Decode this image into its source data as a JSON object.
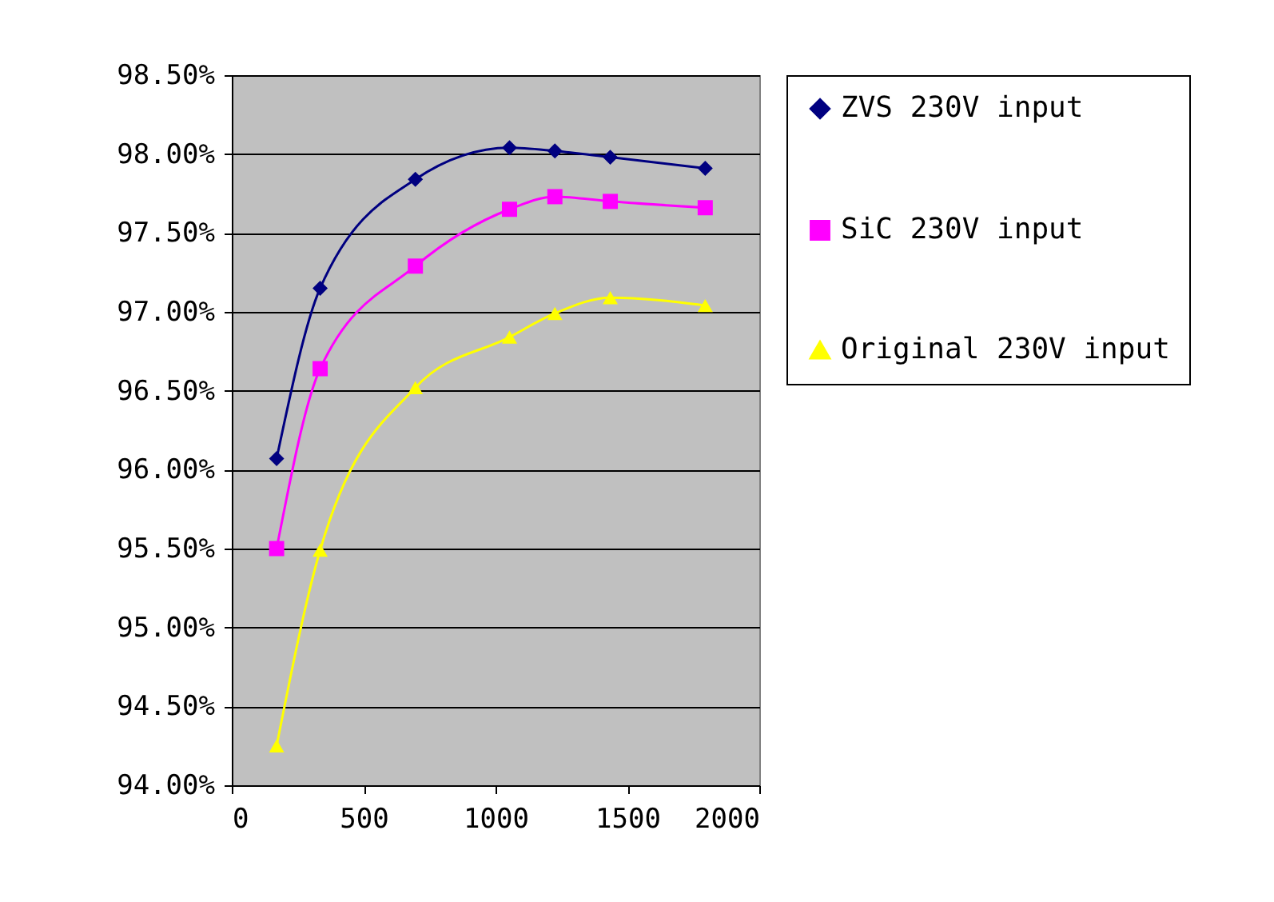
{
  "chart_data": {
    "type": "line",
    "x": [
      170,
      335,
      696,
      1053,
      1225,
      1435,
      1795
    ],
    "series": [
      {
        "name": "ZVS 230V input",
        "color": "#000080",
        "marker": "diamond",
        "values": [
          96.07,
          97.15,
          97.84,
          98.04,
          98.02,
          97.98,
          97.91
        ]
      },
      {
        "name": "SiC 230V input",
        "color": "#ff00ff",
        "marker": "square",
        "values": [
          95.5,
          96.64,
          97.29,
          97.65,
          97.73,
          97.7,
          97.66
        ]
      },
      {
        "name": "Original 230V input",
        "color": "#ffff00",
        "marker": "triangle",
        "values": [
          94.25,
          95.49,
          96.52,
          96.84,
          96.99,
          97.09,
          97.04
        ]
      }
    ],
    "xlim": [
      0,
      2000
    ],
    "xticks": [
      0,
      500,
      1000,
      1500,
      2000
    ],
    "ylim": [
      94,
      98.5
    ],
    "yticks": [
      {
        "value": 94,
        "label": "94.00%"
      },
      {
        "value": 94.5,
        "label": "94.50%"
      },
      {
        "value": 95,
        "label": "95.00%"
      },
      {
        "value": 95.5,
        "label": "95.50%"
      },
      {
        "value": 96,
        "label": "96.00%"
      },
      {
        "value": 96.5,
        "label": "96.50%"
      },
      {
        "value": 97,
        "label": "97.00%"
      },
      {
        "value": 97.5,
        "label": "97.50%"
      },
      {
        "value": 98,
        "label": "98.00%"
      },
      {
        "value": 98.5,
        "label": "98.50%"
      }
    ],
    "grid": "y",
    "legend": "right",
    "line_style": "solid"
  }
}
